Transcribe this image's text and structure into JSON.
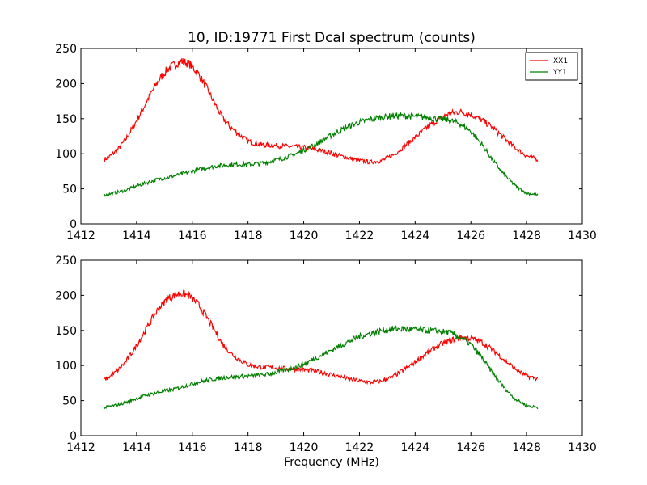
{
  "figure": {
    "title": "10, ID:19771 First Dcal spectrum (counts)",
    "xlabel": "Frequency (MHz)"
  },
  "chart_data": [
    {
      "type": "line",
      "title": "10, ID:19771 First Dcal spectrum (counts)",
      "xlabel": "",
      "ylabel": "",
      "xlim": [
        1412,
        1430
      ],
      "ylim": [
        0,
        250
      ],
      "xticks": [
        "1412",
        "1414",
        "1416",
        "1418",
        "1420",
        "1422",
        "1424",
        "1426",
        "1428",
        "1430"
      ],
      "yticks": [
        "0",
        "50",
        "100",
        "150",
        "200",
        "250"
      ],
      "legend": {
        "placement": "top-right",
        "entries": [
          "XX1",
          "YY1"
        ]
      },
      "grid": false,
      "series": [
        {
          "name": "XX1",
          "color": "#ff0000",
          "x": [
            1412.85,
            1413.0,
            1413.3,
            1413.6,
            1413.9,
            1414.2,
            1414.5,
            1414.8,
            1415.1,
            1415.4,
            1415.6,
            1415.9,
            1416.2,
            1416.5,
            1416.8,
            1417.1,
            1417.4,
            1417.7,
            1418.0,
            1418.4,
            1418.8,
            1419.2,
            1419.6,
            1420.0,
            1420.4,
            1420.8,
            1421.2,
            1421.6,
            1422.0,
            1422.4,
            1422.8,
            1423.2,
            1423.6,
            1424.0,
            1424.4,
            1424.8,
            1425.2,
            1425.6,
            1426.0,
            1426.4,
            1426.8,
            1427.2,
            1427.6,
            1428.0,
            1428.4
          ],
          "y": [
            92,
            95,
            105,
            120,
            140,
            162,
            185,
            205,
            220,
            228,
            232,
            228,
            215,
            195,
            172,
            150,
            137,
            127,
            118,
            113,
            112,
            111,
            110,
            109,
            106,
            103,
            98,
            94,
            90,
            88,
            90,
            98,
            110,
            123,
            137,
            148,
            157,
            160,
            156,
            148,
            137,
            122,
            108,
            97,
            92
          ]
        },
        {
          "name": "YY1",
          "color": "#008000",
          "x": [
            1412.85,
            1413.2,
            1413.6,
            1414.0,
            1414.4,
            1414.8,
            1415.2,
            1415.6,
            1416.0,
            1416.4,
            1416.8,
            1417.2,
            1417.6,
            1418.0,
            1418.4,
            1418.8,
            1419.2,
            1419.6,
            1420.0,
            1420.4,
            1420.8,
            1421.2,
            1421.6,
            1422.0,
            1422.4,
            1422.8,
            1423.2,
            1423.6,
            1424.0,
            1424.4,
            1424.8,
            1425.2,
            1425.6,
            1426.0,
            1426.4,
            1426.8,
            1427.2,
            1427.6,
            1428.0,
            1428.4
          ],
          "y": [
            41,
            44,
            48,
            54,
            59,
            64,
            67,
            71,
            75,
            79,
            82,
            84,
            85,
            85,
            86,
            89,
            93,
            98,
            105,
            113,
            122,
            131,
            139,
            145,
            149,
            152,
            154,
            154,
            153,
            152,
            150,
            148,
            143,
            132,
            113,
            90,
            70,
            54,
            44,
            41
          ]
        }
      ]
    },
    {
      "type": "line",
      "title": "",
      "xlabel": "Frequency (MHz)",
      "ylabel": "",
      "xlim": [
        1412,
        1430
      ],
      "ylim": [
        0,
        250
      ],
      "xticks": [
        "1412",
        "1414",
        "1416",
        "1418",
        "1420",
        "1422",
        "1424",
        "1426",
        "1428",
        "1430"
      ],
      "yticks": [
        "0",
        "50",
        "100",
        "150",
        "200",
        "250"
      ],
      "grid": false,
      "series": [
        {
          "color": "#ff0000",
          "x": [
            1412.85,
            1413.0,
            1413.3,
            1413.6,
            1413.9,
            1414.2,
            1414.5,
            1414.8,
            1415.1,
            1415.4,
            1415.6,
            1415.9,
            1416.2,
            1416.5,
            1416.8,
            1417.1,
            1417.4,
            1417.7,
            1418.0,
            1418.4,
            1418.8,
            1419.2,
            1419.6,
            1420.0,
            1420.4,
            1420.8,
            1421.2,
            1421.6,
            1422.0,
            1422.4,
            1422.8,
            1423.2,
            1423.6,
            1424.0,
            1424.4,
            1424.8,
            1425.2,
            1425.6,
            1426.0,
            1426.4,
            1426.8,
            1427.2,
            1427.6,
            1428.0,
            1428.4
          ],
          "y": [
            80,
            83,
            92,
            105,
            122,
            142,
            163,
            182,
            195,
            201,
            203,
            199,
            188,
            170,
            150,
            130,
            117,
            108,
            101,
            98,
            97,
            96,
            95,
            94,
            92,
            89,
            85,
            81,
            78,
            76,
            78,
            84,
            94,
            105,
            117,
            128,
            135,
            140,
            139,
            133,
            122,
            108,
            95,
            85,
            81
          ]
        },
        {
          "color": "#008000",
          "x": [
            1412.85,
            1413.2,
            1413.6,
            1414.0,
            1414.4,
            1414.8,
            1415.2,
            1415.6,
            1416.0,
            1416.4,
            1416.8,
            1417.2,
            1417.6,
            1418.0,
            1418.4,
            1418.8,
            1419.2,
            1419.6,
            1420.0,
            1420.4,
            1420.8,
            1421.2,
            1421.6,
            1422.0,
            1422.4,
            1422.8,
            1423.2,
            1423.6,
            1424.0,
            1424.4,
            1424.8,
            1425.2,
            1425.6,
            1426.0,
            1426.4,
            1426.8,
            1427.2,
            1427.6,
            1428.0,
            1428.4
          ],
          "y": [
            40,
            43,
            47,
            53,
            58,
            62,
            65,
            69,
            74,
            78,
            81,
            83,
            84,
            85,
            86,
            88,
            92,
            96,
            102,
            110,
            118,
            126,
            134,
            141,
            146,
            150,
            152,
            152,
            151,
            150,
            149,
            147,
            141,
            130,
            111,
            88,
            68,
            52,
            43,
            40
          ]
        }
      ]
    }
  ]
}
